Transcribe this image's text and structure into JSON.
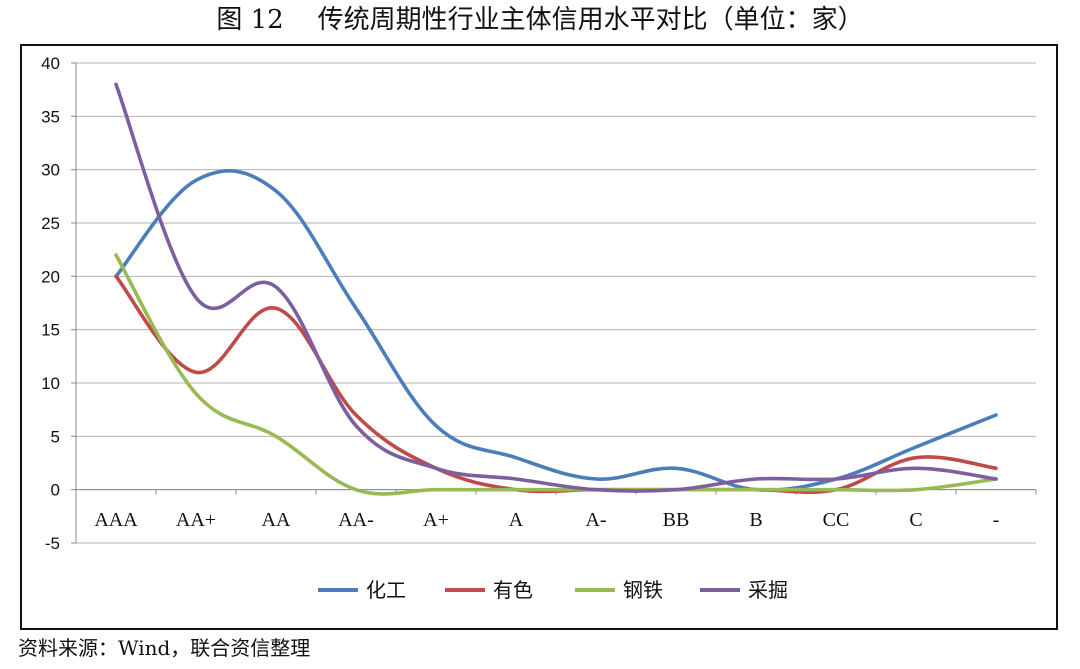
{
  "title": {
    "figure_no": "图 12",
    "text": "传统周期性行业主体信用水平对比（单位：家）"
  },
  "source": "资料来源：Wind，联合资信整理",
  "chart_data": {
    "type": "line",
    "smooth": true,
    "categories": [
      "AAA",
      "AA+",
      "AA",
      "AA-",
      "A+",
      "A",
      "A-",
      "BB",
      "B",
      "CC",
      "C",
      "-"
    ],
    "ylim": [
      -5,
      40
    ],
    "yticks": [
      -5,
      0,
      5,
      10,
      15,
      20,
      25,
      30,
      35,
      40
    ],
    "grid": true,
    "legend": "bottom",
    "series": [
      {
        "name": "化工",
        "color": "#4A7EBB",
        "values": [
          20,
          29,
          28,
          17,
          6,
          3,
          1,
          2,
          0,
          1,
          4,
          7
        ]
      },
      {
        "name": "有色",
        "color": "#BE4B48",
        "values": [
          20,
          11,
          17,
          7,
          2,
          0,
          0,
          0,
          0,
          0,
          3,
          2
        ]
      },
      {
        "name": "钢铁",
        "color": "#98B954",
        "values": [
          22,
          9,
          5,
          0,
          0,
          0,
          0,
          0,
          0,
          0,
          0,
          1
        ]
      },
      {
        "name": "采掘",
        "color": "#7D5FA0",
        "values": [
          38,
          18,
          19,
          6,
          2,
          1,
          0,
          0,
          1,
          1,
          2,
          1
        ]
      }
    ]
  }
}
